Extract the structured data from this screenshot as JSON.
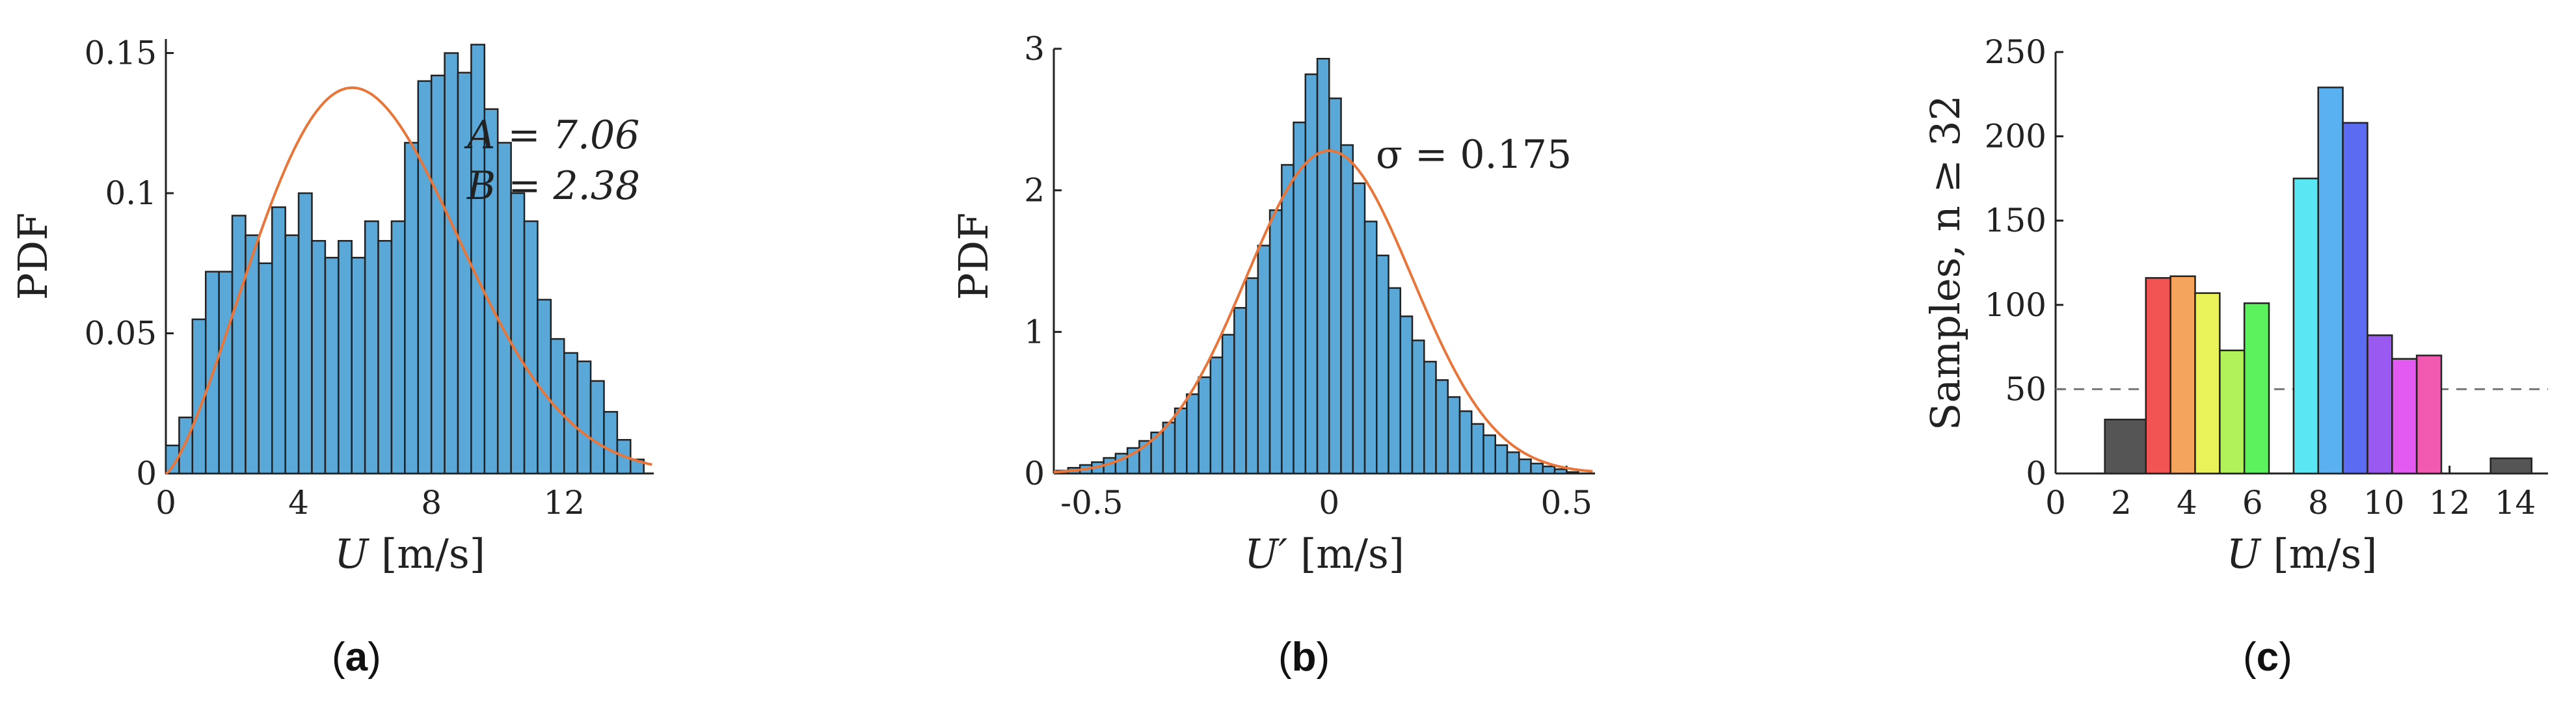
{
  "panels": [
    {
      "id": "a",
      "caption_open": "(",
      "caption_letter": "a",
      "caption_close": ")"
    },
    {
      "id": "b",
      "caption_open": "(",
      "caption_letter": "b",
      "caption_close": ")"
    },
    {
      "id": "c",
      "caption_open": "(",
      "caption_letter": "c",
      "caption_close": ")"
    }
  ],
  "colors": {
    "bar_blue": "#5aa8d8",
    "fit_orange": "#e8763b",
    "bar_edge": "#222222",
    "dashed": "#777777"
  },
  "chart_data": [
    {
      "type": "bar",
      "title": "",
      "xlabel_var": "U",
      "xlabel_unit": "[m/s]",
      "ylabel": "PDF",
      "xlim": [
        0,
        14.7
      ],
      "ylim": [
        0,
        0.155
      ],
      "xticks": [
        0,
        4,
        8,
        12
      ],
      "yticks": [
        0,
        0.05,
        0.1,
        0.15
      ],
      "ytick_labels": [
        "0",
        "0.05",
        "0.1",
        "0.15"
      ],
      "bin_start": 0,
      "bin_width": 0.4,
      "values": [
        0.01,
        0.02,
        0.055,
        0.072,
        0.072,
        0.092,
        0.085,
        0.075,
        0.095,
        0.085,
        0.1,
        0.083,
        0.077,
        0.083,
        0.077,
        0.09,
        0.083,
        0.09,
        0.118,
        0.14,
        0.142,
        0.15,
        0.143,
        0.153,
        0.13,
        0.118,
        0.1,
        0.09,
        0.062,
        0.048,
        0.043,
        0.04,
        0.033,
        0.022,
        0.012,
        0.005
      ],
      "fit": {
        "distribution": "weibull",
        "A": 7.06,
        "B": 2.38
      },
      "annotations": [
        "A = 7.06",
        "B = 2.38"
      ]
    },
    {
      "type": "bar",
      "title": "",
      "xlabel_var": "U′",
      "xlabel_unit": "[m/s]",
      "ylabel": "PDF",
      "xlim": [
        -0.58,
        0.56
      ],
      "ylim": [
        0,
        3.0
      ],
      "xticks": [
        -0.5,
        0,
        0.5
      ],
      "xtick_labels": [
        "-0.5",
        "0",
        "0.5"
      ],
      "yticks": [
        0,
        1,
        2,
        3
      ],
      "ytick_labels": [
        "0",
        "1",
        "2",
        "3"
      ],
      "bin_start": -0.575,
      "bin_width": 0.025,
      "values": [
        0.02,
        0.04,
        0.06,
        0.08,
        0.11,
        0.14,
        0.18,
        0.23,
        0.29,
        0.36,
        0.46,
        0.56,
        0.68,
        0.82,
        0.98,
        1.17,
        1.38,
        1.61,
        1.86,
        2.18,
        2.48,
        2.82,
        2.93,
        2.65,
        2.32,
        2.05,
        1.78,
        1.54,
        1.31,
        1.11,
        0.94,
        0.79,
        0.66,
        0.54,
        0.44,
        0.35,
        0.27,
        0.2,
        0.15,
        0.1,
        0.07,
        0.05,
        0.03,
        0.01
      ],
      "fit": {
        "distribution": "normal",
        "sigma": 0.175
      },
      "annotations": [
        "σ = 0.175"
      ]
    },
    {
      "type": "bar",
      "title": "",
      "xlabel_var": "U",
      "xlabel_unit": "[m/s]",
      "ylabel": "Samples, n ≥ 32",
      "xlim": [
        0,
        15
      ],
      "ylim": [
        0,
        250
      ],
      "xticks": [
        0,
        2,
        4,
        6,
        8,
        10,
        12,
        14
      ],
      "yticks": [
        0,
        50,
        100,
        150,
        200,
        250
      ],
      "reference_line": 50,
      "bin_edges": [
        1.5,
        2.75,
        3.5,
        4.25,
        5.0,
        5.75,
        6.5,
        7.25,
        8.0,
        8.75,
        9.5,
        10.25,
        11.0,
        11.75,
        12.5,
        13.25,
        14.5
      ],
      "bin_centers": [
        2.1,
        3.1,
        3.9,
        4.6,
        5.4,
        6.1,
        6.9,
        7.6,
        8.4,
        9.1,
        9.9,
        10.6,
        11.4,
        12.1,
        12.9,
        13.9
      ],
      "values": [
        32,
        116,
        117,
        107,
        73,
        101,
        0,
        175,
        229,
        208,
        82,
        68,
        70,
        0,
        0,
        9
      ],
      "bar_colors": [
        "#555555",
        "#f25454",
        "#f5a45b",
        "#eaf25a",
        "#b1f25a",
        "#5cf25e",
        "#5cf2a0",
        "#5ae6f2",
        "#5ab1f2",
        "#5c6cf2",
        "#9a5af2",
        "#e25af2",
        "#f25ab1",
        "#f25ab1",
        "#f25ab1",
        "#555555"
      ]
    }
  ]
}
